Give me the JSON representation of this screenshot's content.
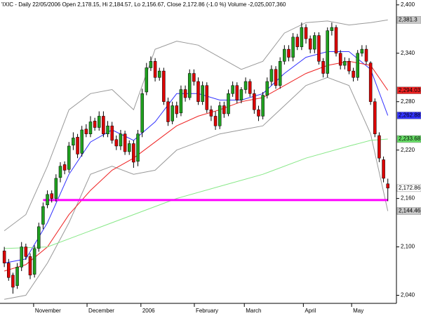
{
  "chart_data": {
    "type": "candlestick",
    "title": "'IXIC - Daily 22/05/2006 Open 2,178.15, Hi 2,184.57, Lo 2,156.67, Close 2,172.86 (-1.0 %) Volume -2,025,007,360",
    "xlim": [
      -1,
      91
    ],
    "xticks": [
      {
        "value": 6.8,
        "label": "November"
      },
      {
        "value": 19.2,
        "label": "December"
      },
      {
        "value": 31.7,
        "label": "2006"
      },
      {
        "value": 44.1,
        "label": "February"
      },
      {
        "value": 55.7,
        "label": "March"
      },
      {
        "value": 69.4,
        "label": "April"
      },
      {
        "value": 80.6,
        "label": "May"
      }
    ],
    "ylim": [
      2030,
      2406
    ],
    "yticks": [
      {
        "value": 2040,
        "label": "2,040"
      },
      {
        "value": 2100,
        "label": "2,100"
      },
      {
        "value": 2160,
        "label": "2,160"
      },
      {
        "value": 2220,
        "label": "2,220"
      },
      {
        "value": 2280,
        "label": "2,280"
      },
      {
        "value": 2340,
        "label": "2,340"
      },
      {
        "value": 2400,
        "label": "2,400"
      }
    ],
    "up_color": "#1fa01f",
    "down_color": "#dd0000",
    "open": [
      2095,
      2080,
      2065,
      2052,
      2075,
      2100,
      2088,
      2066,
      2098,
      2128,
      2152,
      2166,
      2160,
      2186,
      2202,
      2196,
      2226,
      2236,
      2216,
      2246,
      2240,
      2256,
      2248,
      2262,
      2240,
      2250,
      2233,
      2225,
      2240,
      2218,
      2228,
      2206,
      2242,
      2292,
      2322,
      2330,
      2310,
      2318,
      2280,
      2256,
      2275,
      2266,
      2295,
      2285,
      2315,
      2305,
      2280,
      2300,
      2270,
      2262,
      2250,
      2275,
      2265,
      2290,
      2300,
      2282,
      2295,
      2305,
      2290,
      2270,
      2262,
      2288,
      2305,
      2320,
      2300,
      2330,
      2345,
      2335,
      2360,
      2348,
      2372,
      2358,
      2345,
      2362,
      2330,
      2315,
      2368,
      2372,
      2340,
      2325,
      2330,
      2318,
      2310,
      2340,
      2345,
      2328,
      2280,
      2238,
      2208,
      2178.15
    ],
    "high": [
      2100,
      2085,
      2068,
      2080,
      2106,
      2104,
      2092,
      2102,
      2130,
      2155,
      2170,
      2170,
      2190,
      2205,
      2206,
      2230,
      2242,
      2240,
      2250,
      2252,
      2262,
      2260,
      2268,
      2268,
      2256,
      2255,
      2238,
      2245,
      2244,
      2232,
      2232,
      2245,
      2296,
      2328,
      2336,
      2334,
      2322,
      2322,
      2285,
      2280,
      2280,
      2300,
      2300,
      2320,
      2320,
      2310,
      2305,
      2304,
      2275,
      2268,
      2280,
      2280,
      2295,
      2305,
      2304,
      2298,
      2310,
      2308,
      2295,
      2275,
      2292,
      2310,
      2325,
      2324,
      2335,
      2350,
      2350,
      2365,
      2364,
      2378,
      2376,
      2362,
      2366,
      2366,
      2334,
      2372,
      2378,
      2375,
      2344,
      2335,
      2334,
      2322,
      2344,
      2350,
      2350,
      2330,
      2284,
      2242,
      2212,
      2184.57
    ],
    "low": [
      2075,
      2058,
      2042,
      2048,
      2070,
      2084,
      2060,
      2062,
      2094,
      2122,
      2148,
      2155,
      2156,
      2180,
      2190,
      2192,
      2220,
      2210,
      2212,
      2236,
      2236,
      2244,
      2244,
      2236,
      2236,
      2228,
      2220,
      2220,
      2214,
      2214,
      2198,
      2200,
      2236,
      2288,
      2318,
      2305,
      2306,
      2276,
      2250,
      2252,
      2260,
      2262,
      2280,
      2282,
      2300,
      2276,
      2276,
      2266,
      2256,
      2245,
      2246,
      2260,
      2262,
      2286,
      2278,
      2278,
      2290,
      2286,
      2265,
      2256,
      2258,
      2284,
      2300,
      2296,
      2296,
      2326,
      2330,
      2330,
      2344,
      2344,
      2352,
      2340,
      2340,
      2326,
      2310,
      2310,
      2362,
      2336,
      2320,
      2320,
      2314,
      2305,
      2306,
      2336,
      2326,
      2276,
      2236,
      2205,
      2180,
      2156.67
    ],
    "close": [
      2080,
      2062,
      2050,
      2075,
      2100,
      2088,
      2065,
      2098,
      2125,
      2150,
      2165,
      2160,
      2185,
      2200,
      2195,
      2225,
      2235,
      2215,
      2245,
      2240,
      2255,
      2248,
      2262,
      2240,
      2250,
      2232,
      2225,
      2240,
      2218,
      2228,
      2205,
      2240,
      2290,
      2322,
      2330,
      2310,
      2318,
      2280,
      2255,
      2275,
      2265,
      2295,
      2285,
      2315,
      2305,
      2280,
      2300,
      2270,
      2262,
      2250,
      2275,
      2265,
      2290,
      2300,
      2282,
      2295,
      2305,
      2290,
      2270,
      2262,
      2288,
      2305,
      2320,
      2300,
      2330,
      2345,
      2335,
      2360,
      2348,
      2372,
      2358,
      2345,
      2362,
      2330,
      2315,
      2368,
      2372,
      2340,
      2325,
      2330,
      2318,
      2310,
      2340,
      2345,
      2330,
      2280,
      2240,
      2210,
      2185,
      2172.86
    ],
    "close_label": "2,172.86",
    "series": [
      {
        "color": "#999999",
        "x": [
          0,
          5,
          10,
          15,
          20,
          25,
          30,
          35,
          40,
          45,
          50,
          55,
          60,
          65,
          70,
          75,
          80,
          85,
          89
        ],
        "values": [
          2120,
          2140,
          2200,
          2270,
          2290,
          2295,
          2270,
          2345,
          2355,
          2350,
          2335,
          2320,
          2330,
          2365,
          2378,
          2380,
          2375,
          2378,
          2381.3
        ],
        "value_labels": [
          null,
          null,
          null,
          null,
          null,
          null,
          null,
          null,
          null,
          null,
          null,
          null,
          null,
          null,
          null,
          null,
          null,
          null,
          "2,381.3"
        ],
        "flag_color": "#c8c8c8",
        "flag_text": "#000000"
      },
      {
        "color": "#999999",
        "x": [
          0,
          5,
          10,
          15,
          20,
          25,
          30,
          35,
          40,
          45,
          50,
          55,
          60,
          65,
          70,
          75,
          80,
          85,
          89
        ],
        "values": [
          2035,
          2040,
          2080,
          2130,
          2190,
          2200,
          2190,
          2195,
          2220,
          2230,
          2240,
          2245,
          2250,
          2275,
          2300,
          2310,
          2300,
          2240,
          2144.46
        ],
        "value_labels": [
          null,
          null,
          null,
          null,
          null,
          null,
          null,
          null,
          null,
          null,
          null,
          null,
          null,
          null,
          null,
          null,
          null,
          null,
          "2,144.46"
        ],
        "flag_color": "#c8c8c8",
        "flag_text": "#000000"
      },
      {
        "color": "#3333ff",
        "x": [
          0,
          5,
          10,
          15,
          20,
          25,
          30,
          35,
          40,
          45,
          50,
          55,
          60,
          65,
          70,
          75,
          80,
          85,
          89
        ],
        "values": [
          2080,
          2085,
          2130,
          2190,
          2230,
          2245,
          2232,
          2255,
          2290,
          2290,
          2282,
          2282,
          2290,
          2315,
          2335,
          2342,
          2342,
          2320,
          2262.88
        ],
        "value_labels": [
          null,
          null,
          null,
          null,
          null,
          null,
          null,
          null,
          null,
          null,
          null,
          null,
          null,
          null,
          null,
          null,
          null,
          null,
          "2,262.88"
        ],
        "flag_color": "#3333ff",
        "flag_text": "#ffffff"
      },
      {
        "color": "#ee2222",
        "x": [
          0,
          5,
          10,
          15,
          20,
          25,
          30,
          35,
          40,
          45,
          50,
          55,
          60,
          65,
          70,
          75,
          80,
          85,
          89
        ],
        "values": [
          2070,
          2078,
          2100,
          2140,
          2170,
          2195,
          2210,
          2230,
          2250,
          2262,
          2270,
          2280,
          2285,
          2300,
          2315,
          2325,
          2330,
          2325,
          2294.03
        ],
        "value_labels": [
          null,
          null,
          null,
          null,
          null,
          null,
          null,
          null,
          null,
          null,
          null,
          null,
          null,
          null,
          null,
          null,
          null,
          null,
          "2,294.03"
        ],
        "flag_color": "#ee2222",
        "flag_text": "#ffffff"
      },
      {
        "color": "#88e888",
        "x": [
          0,
          10,
          20,
          30,
          40,
          50,
          60,
          70,
          80,
          85,
          89
        ],
        "values": [
          2098,
          2100,
          2120,
          2140,
          2160,
          2175,
          2190,
          2210,
          2225,
          2232,
          2233.68
        ],
        "value_labels": [
          null,
          null,
          null,
          null,
          null,
          null,
          null,
          null,
          null,
          null,
          "2,233.68"
        ],
        "flag_color": "#66dd66",
        "flag_text": "#000000"
      }
    ],
    "hline": {
      "value": 2158,
      "x": [
        9,
        89
      ],
      "color": "#ff00ff"
    }
  }
}
